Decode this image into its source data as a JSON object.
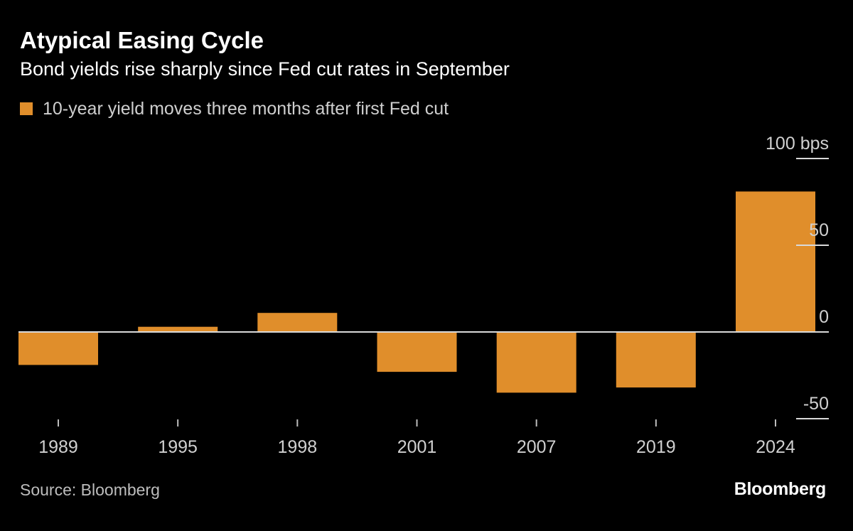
{
  "header": {
    "title": "Atypical Easing Cycle",
    "subtitle": "Bond yields rise sharply since Fed cut rates in September"
  },
  "legend": {
    "label": "10-year yield moves three months after first Fed cut"
  },
  "footer": {
    "source": "Source: Bloomberg",
    "brand": "Bloomberg"
  },
  "colors": {
    "bar": "#E08E2B",
    "background": "#000000",
    "zero_line": "#d9d9d9",
    "axis_text": "#d0d0d0"
  },
  "chart_data": {
    "type": "bar",
    "categories": [
      "1989",
      "1995",
      "1998",
      "2001",
      "2007",
      "2019",
      "2024"
    ],
    "series": [
      {
        "name": "10-year yield moves three months after first Fed cut",
        "values": [
          -19,
          3,
          11,
          -23,
          -35,
          -32,
          81
        ]
      }
    ],
    "ylim": [
      -50,
      100
    ],
    "y_ticks": [
      {
        "value": 100,
        "label": "100 bps"
      },
      {
        "value": 50,
        "label": "50"
      },
      {
        "value": 0,
        "label": "0"
      },
      {
        "value": -50,
        "label": "-50"
      }
    ],
    "y_axis_position": "right",
    "grid": false,
    "legend_position": "top-left"
  }
}
